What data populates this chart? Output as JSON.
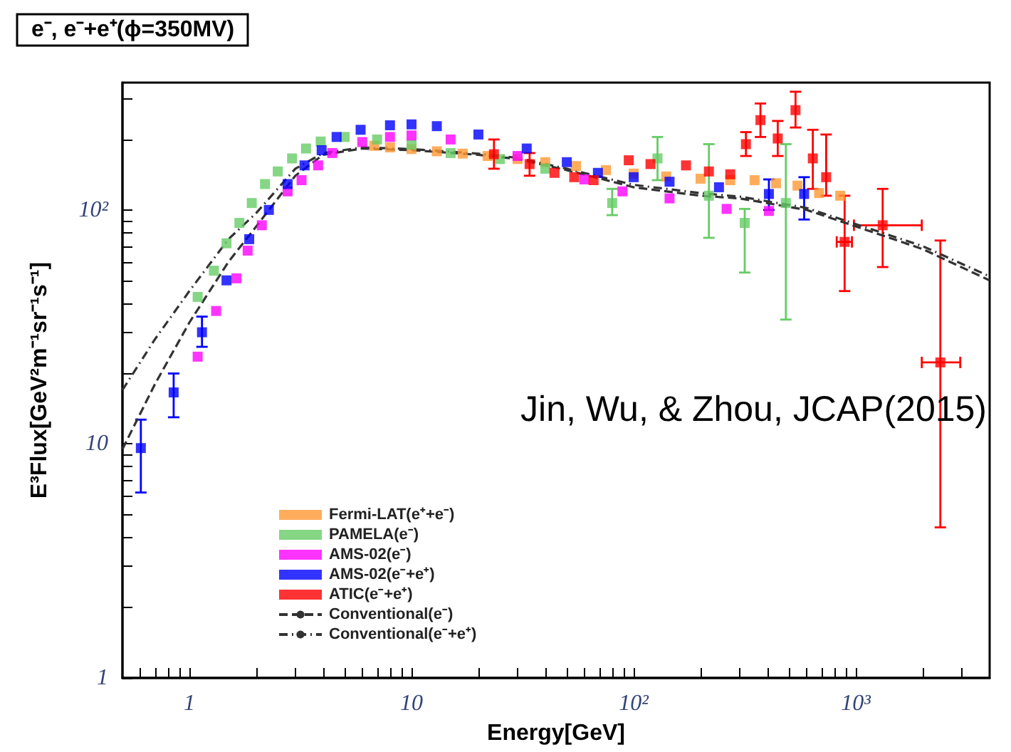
{
  "chart_data": {
    "type": "scatter",
    "title": "e⁻, e⁻+e⁺(ϕ=350MV)",
    "xlabel": "Energy[GeV]",
    "ylabel": "E³Flux[GeV²m⁻¹sr⁻¹s⁻¹]",
    "annotations": [
      "Jin, Wu, & Zhou, JCAP(2015)"
    ],
    "log": "xy",
    "grid": false,
    "legend": "bottom left",
    "marker": "square",
    "xlim": [
      0.5,
      4000
    ],
    "ylim": [
      1,
      350
    ],
    "xticks": [
      {
        "value": 0.6,
        "label": null
      },
      {
        "value": 0.7,
        "label": null
      },
      {
        "value": 0.8,
        "label": null
      },
      {
        "value": 0.9,
        "label": null
      },
      1,
      {
        "value": 2,
        "label": null
      },
      {
        "value": 3,
        "label": null
      },
      {
        "value": 4,
        "label": null
      },
      {
        "value": 5,
        "label": null
      },
      {
        "value": 6,
        "label": null
      },
      {
        "value": 7,
        "label": null
      },
      {
        "value": 8,
        "label": null
      },
      {
        "value": 9,
        "label": null
      },
      10,
      {
        "value": 20,
        "label": null
      },
      {
        "value": 30,
        "label": null
      },
      {
        "value": 40,
        "label": null
      },
      {
        "value": 50,
        "label": null
      },
      {
        "value": 60,
        "label": null
      },
      {
        "value": 70,
        "label": null
      },
      {
        "value": 80,
        "label": null
      },
      {
        "value": 90,
        "label": null
      },
      {
        "value": 100,
        "label": "10²"
      },
      {
        "value": 200,
        "label": null
      },
      {
        "value": 300,
        "label": null
      },
      {
        "value": 400,
        "label": null
      },
      {
        "value": 500,
        "label": null
      },
      {
        "value": 600,
        "label": null
      },
      {
        "value": 700,
        "label": null
      },
      {
        "value": 800,
        "label": null
      },
      {
        "value": 900,
        "label": null
      },
      {
        "value": 1000,
        "label": "10³"
      },
      {
        "value": 2000,
        "label": null
      },
      {
        "value": 3000,
        "label": null
      }
    ],
    "yticks": [
      1,
      {
        "value": 2,
        "label": null
      },
      {
        "value": 3,
        "label": null
      },
      {
        "value": 4,
        "label": null
      },
      {
        "value": 5,
        "label": null
      },
      {
        "value": 6,
        "label": null
      },
      {
        "value": 7,
        "label": null
      },
      {
        "value": 8,
        "label": null
      },
      {
        "value": 9,
        "label": null
      },
      10,
      {
        "value": 20,
        "label": null
      },
      {
        "value": 30,
        "label": null
      },
      {
        "value": 40,
        "label": null
      },
      {
        "value": 50,
        "label": null
      },
      {
        "value": 60,
        "label": null
      },
      {
        "value": 70,
        "label": null
      },
      {
        "value": 80,
        "label": null
      },
      {
        "value": 90,
        "label": null
      },
      {
        "value": 100,
        "label": "10²"
      },
      {
        "value": 200,
        "label": null
      },
      {
        "value": 300,
        "label": null
      }
    ],
    "series": [
      {
        "name": "Fermi-LAT(e⁺+e⁻)",
        "color": "#ff9933",
        "x": [
          6.8,
          8,
          10,
          13,
          17,
          22,
          30,
          40,
          55,
          75,
          100,
          140,
          200,
          272,
          350,
          437,
          546,
          683,
          850
        ],
        "values": [
          188,
          185,
          182,
          178,
          174,
          170,
          165,
          160,
          154,
          148,
          143,
          139,
          136,
          134,
          134,
          130,
          127,
          118,
          115
        ]
      },
      {
        "name": "PAMELA(e⁻)",
        "color": "#66cc66",
        "x": [
          1.09,
          1.29,
          1.47,
          1.68,
          1.91,
          2.19,
          2.5,
          2.9,
          3.35,
          3.9,
          5,
          7,
          10,
          15,
          25,
          40,
          80,
          128,
          218,
          316,
          484
        ],
        "values": [
          42.5,
          55,
          72,
          88,
          107,
          129,
          146,
          166,
          183,
          196,
          205,
          200,
          190,
          175,
          165,
          150,
          107,
          166,
          115,
          88,
          107
        ],
        "errors": [
          null,
          null,
          null,
          null,
          null,
          null,
          null,
          null,
          null,
          null,
          null,
          null,
          null,
          null,
          null,
          null,
          [
            95,
            123
          ],
          [
            134,
            205
          ],
          [
            76,
            191
          ],
          [
            54,
            101
          ],
          [
            34,
            191
          ]
        ]
      },
      {
        "name": "AMS-02(e⁻)",
        "color": "#ff00ff",
        "x": [
          1.09,
          1.32,
          1.63,
          1.83,
          2.12,
          2.77,
          3.2,
          3.8,
          4.4,
          6,
          8,
          10,
          15,
          30,
          60,
          89,
          145,
          262,
          406
        ],
        "values": [
          23.6,
          37,
          51,
          67,
          86,
          120,
          134,
          155,
          175,
          195,
          205,
          208,
          200,
          170,
          135,
          120,
          112,
          101,
          99
        ]
      },
      {
        "name": "AMS-02(e⁻+e⁺)",
        "color": "#0000ff",
        "x": [
          0.605,
          0.85,
          1.14,
          1.47,
          1.86,
          2.28,
          2.77,
          3.3,
          3.94,
          4.6,
          5.9,
          8,
          10,
          13,
          20,
          33,
          50,
          69,
          100,
          145,
          242,
          406,
          585
        ],
        "values": [
          9.6,
          16.6,
          30,
          50,
          75,
          100,
          129,
          155,
          180,
          205,
          220,
          230,
          232,
          228,
          210,
          183,
          160,
          144,
          138,
          132,
          125,
          117,
          117
        ],
        "errors": [
          [
            6.2,
            12.7
          ],
          [
            13,
            20
          ],
          [
            26,
            35
          ],
          null,
          null,
          null,
          null,
          null,
          null,
          null,
          null,
          null,
          null,
          null,
          null,
          null,
          null,
          null,
          null,
          null,
          null,
          [
            100,
            135
          ],
          [
            91,
            138
          ]
        ]
      },
      {
        "name": "ATIC(e⁻+e⁺)",
        "color": "#ff0000",
        "x": [
          23.5,
          34,
          44,
          54,
          66,
          95,
          119,
          172,
          218,
          272,
          320,
          372,
          445,
          535,
          640,
          735,
          890,
          1320,
          2400
        ],
        "values": [
          173,
          157,
          144,
          138,
          134,
          163,
          157,
          155,
          146,
          142,
          191,
          242,
          202,
          267,
          166,
          138,
          73,
          86,
          22.3
        ],
        "errors": [
          [
            150,
            200
          ],
          [
            140,
            175
          ],
          null,
          null,
          null,
          null,
          null,
          null,
          null,
          null,
          [
            170,
            215
          ],
          [
            205,
            285
          ],
          [
            170,
            240
          ],
          [
            225,
            320
          ],
          [
            123,
            220
          ],
          [
            115,
            210
          ],
          [
            45,
            115
          ],
          [
            57,
            123
          ],
          [
            4.4,
            74
          ]
        ],
        "xerrors": [
          null,
          null,
          null,
          null,
          null,
          null,
          null,
          null,
          null,
          null,
          null,
          null,
          null,
          null,
          null,
          null,
          [
            820,
            960
          ],
          [
            980,
            1980
          ],
          [
            1980,
            2950
          ]
        ]
      },
      {
        "name": "Conventional(e⁻)",
        "type": "line",
        "marker": "none",
        "line_style": "dashed",
        "color": "#333333",
        "x": [
          0.5,
          0.7,
          1,
          1.5,
          2,
          3,
          4,
          6,
          10,
          20,
          30,
          50,
          100,
          200,
          300,
          600,
          1000,
          2000,
          4000
        ],
        "values": [
          9.5,
          18,
          33,
          60,
          85,
          140,
          172,
          183,
          180,
          172,
          165,
          148,
          125,
          115,
          112,
          100,
          85,
          68,
          50
        ]
      },
      {
        "name": "Conventional(e⁻+e⁺)",
        "type": "line",
        "marker": "none",
        "line_style": "dashdot",
        "color": "#333333",
        "x": [
          0.5,
          0.7,
          1,
          1.5,
          2,
          3,
          4,
          6,
          10,
          20,
          30,
          50,
          100,
          200,
          300,
          600,
          1000,
          2000,
          4000
        ],
        "values": [
          17,
          28,
          45,
          75,
          97,
          150,
          175,
          185,
          182,
          174,
          167,
          150,
          128,
          118,
          114,
          102,
          87,
          70,
          52
        ]
      }
    ]
  }
}
